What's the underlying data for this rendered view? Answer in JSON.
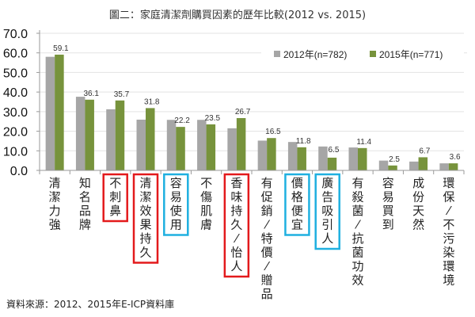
{
  "chart_data": {
    "type": "bar",
    "title": "圖二：家庭清潔劑購買因素的歷年比較(2012 vs. 2015)",
    "xlabel": "",
    "ylabel": "",
    "ylim": [
      0,
      70
    ],
    "yticks": [
      "0.0",
      "10.0",
      "20.0",
      "30.0",
      "40.0",
      "50.0",
      "60.0",
      "70.0"
    ],
    "ytick_values": [
      0,
      10,
      20,
      30,
      40,
      50,
      60,
      70
    ],
    "grid": true,
    "legend_position": "top-right",
    "categories": [
      "清潔力強",
      "知名品牌",
      "不刺鼻",
      "清潔效果持久",
      "容易使用",
      "不傷肌膚",
      "香味持久/怡人",
      "有促銷/特價/贈品",
      "價格便宜",
      "廣告吸引人",
      "有殺菌/抗菌功效",
      "容易買到",
      "成份天然",
      "環保/不污染環境"
    ],
    "series": [
      {
        "name": "2012年(n=782)",
        "color": "#a6a6a6",
        "values": [
          58.0,
          37.6,
          31.2,
          25.9,
          25.8,
          25.8,
          21.5,
          15.2,
          14.5,
          12.2,
          11.7,
          5.0,
          4.5,
          3.6
        ]
      },
      {
        "name": "2015年(n=771)",
        "color": "#77933c",
        "values": [
          59.1,
          36.1,
          35.7,
          31.8,
          22.2,
          23.5,
          26.7,
          16.5,
          11.8,
          6.5,
          11.4,
          2.5,
          6.7,
          3.6
        ],
        "labels": [
          "59.1",
          "36.1",
          "35.7",
          "31.8",
          "22.2",
          "23.5",
          "26.7",
          "16.5",
          "11.8",
          "6.5",
          "11.4",
          "2.5",
          "6.7",
          "3.6"
        ]
      }
    ],
    "highlights": [
      {
        "category": "不刺鼻",
        "color": "#e31a1c"
      },
      {
        "category": "清潔效果持久",
        "color": "#e31a1c"
      },
      {
        "category": "容易使用",
        "color": "#1fb0e0"
      },
      {
        "category": "香味持久/怡人",
        "color": "#e31a1c"
      },
      {
        "category": "價格便宜",
        "color": "#1fb0e0"
      },
      {
        "category": "廣告吸引人",
        "color": "#1fb0e0"
      }
    ],
    "source": "資料來源：2012、2015年E-ICP資料庫"
  }
}
